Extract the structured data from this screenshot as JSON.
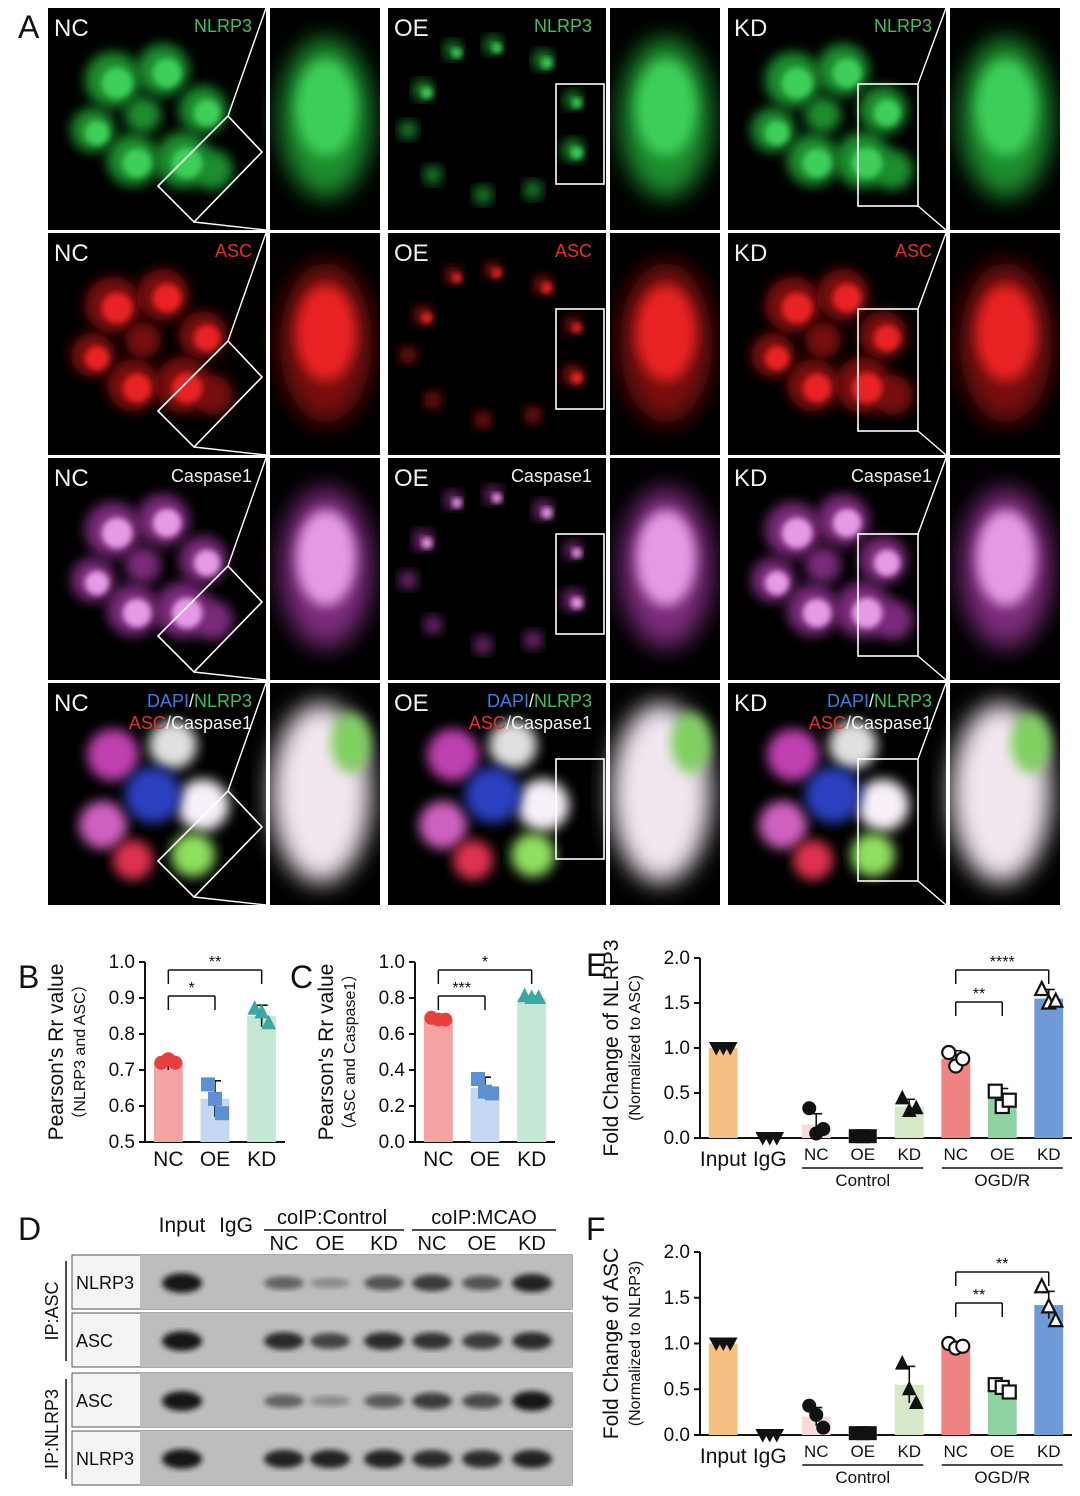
{
  "panel_labels": {
    "a": "A",
    "b": "B",
    "c": "C",
    "d": "D",
    "e": "E",
    "f": "F"
  },
  "micrograph": {
    "groups": [
      "NC",
      "OE",
      "KD"
    ],
    "rows": [
      {
        "channel": "NLRP3",
        "parts": [
          {
            "text": "NLRP3",
            "color": "#3fbf5f"
          }
        ]
      },
      {
        "channel": "ASC",
        "parts": [
          {
            "text": "ASC",
            "color": "#e23030"
          }
        ]
      },
      {
        "channel": "Caspase1",
        "parts": [
          {
            "text": "Caspase1",
            "color": "#f2eef2"
          }
        ]
      },
      {
        "channel": "merge",
        "parts": [
          {
            "text": "DAPI",
            "color": "#3a7fe0"
          },
          {
            "text": "/",
            "color": "#f2f2f2"
          },
          {
            "text": "NLRP3",
            "color": "#3fbf5f"
          }
        ],
        "parts2": [
          {
            "text": "ASC",
            "color": "#e23030"
          },
          {
            "text": "/Caspase1",
            "color": "#f2f2f2"
          }
        ]
      }
    ]
  },
  "western": {
    "header": {
      "input": "Input",
      "igg": "IgG",
      "coip_control": "coIP:Control",
      "coip_mcao": "coIP:MCAO",
      "lanes": [
        "NC",
        "OE",
        "KD",
        "NC",
        "OE",
        "KD"
      ]
    },
    "ip_groups": [
      {
        "label": "IP:ASC",
        "blots": [
          {
            "name": "NLRP3",
            "intensity": [
              0.95,
              0.0,
              0.45,
              0.2,
              0.55,
              0.7,
              0.55,
              0.85
            ]
          },
          {
            "name": "ASC",
            "intensity": [
              0.95,
              0.0,
              0.8,
              0.65,
              0.8,
              0.75,
              0.7,
              0.8
            ]
          }
        ]
      },
      {
        "label": "IP:NLRP3",
        "blots": [
          {
            "name": "ASC",
            "intensity": [
              0.95,
              0.0,
              0.45,
              0.2,
              0.5,
              0.7,
              0.6,
              0.95
            ]
          },
          {
            "name": "NLRP3",
            "intensity": [
              0.95,
              0.0,
              0.85,
              0.85,
              0.85,
              0.8,
              0.8,
              0.85
            ]
          }
        ]
      }
    ]
  },
  "chart_data": [
    {
      "id": "B",
      "type": "bar",
      "categories": [
        "NC",
        "OE",
        "KD"
      ],
      "values": [
        0.72,
        0.62,
        0.85
      ],
      "errors": [
        0.02,
        0.05,
        0.03
      ],
      "points": [
        [
          0.72,
          0.73,
          0.72
        ],
        [
          0.66,
          0.62,
          0.58
        ],
        [
          0.87,
          0.86,
          0.83
        ]
      ],
      "colors": [
        "#f4a3a3",
        "#c5d8f0",
        "#c6e6d6"
      ],
      "point_colors": [
        "#e8403f",
        "#5d8fd3",
        "#3aa9a1"
      ],
      "markers": [
        "circle",
        "square",
        "triangle"
      ],
      "ylabel": "Pearson's Rr value",
      "ylabel2": "（NLRP3 and ASC）",
      "ylim": [
        0.5,
        1.0
      ],
      "yticks": [
        "0.5",
        "0.6",
        "0.7",
        "0.8",
        "0.9",
        "1.0"
      ],
      "significance": [
        {
          "from": 0,
          "to": 1,
          "label": "*"
        },
        {
          "from": 0,
          "to": 2,
          "label": "**"
        }
      ]
    },
    {
      "id": "C",
      "type": "bar",
      "categories": [
        "NC",
        "OE",
        "KD"
      ],
      "values": [
        0.68,
        0.3,
        0.8
      ],
      "errors": [
        0.02,
        0.06,
        0.01
      ],
      "points": [
        [
          0.69,
          0.68,
          0.68
        ],
        [
          0.35,
          0.28,
          0.27
        ],
        [
          0.81,
          0.8,
          0.8
        ]
      ],
      "colors": [
        "#f4a3a3",
        "#c5d8f0",
        "#c6e6d6"
      ],
      "point_colors": [
        "#e8403f",
        "#5d8fd3",
        "#3aa9a1"
      ],
      "markers": [
        "circle",
        "square",
        "triangle"
      ],
      "ylabel": "Pearson's Rr value",
      "ylabel2": "（ASC and Caspase1）",
      "ylim": [
        0.0,
        1.0
      ],
      "yticks": [
        "0.0",
        "0.2",
        "0.4",
        "0.6",
        "0.8",
        "1.0"
      ],
      "significance": [
        {
          "from": 0,
          "to": 1,
          "label": "***"
        },
        {
          "from": 0,
          "to": 2,
          "label": "*"
        }
      ]
    },
    {
      "id": "E",
      "type": "bar",
      "categories": [
        "Input",
        "IgG",
        "NC",
        "OE",
        "KD",
        "NC",
        "OE",
        "KD"
      ],
      "groups": [
        {
          "label": "Control",
          "from": 2,
          "to": 4
        },
        {
          "label": "OGD/R",
          "from": 5,
          "to": 7
        }
      ],
      "values": [
        1.0,
        0.0,
        0.15,
        0.02,
        0.35,
        0.88,
        0.45,
        1.55
      ],
      "errors": [
        0.0,
        0.0,
        0.12,
        0.01,
        0.08,
        0.09,
        0.1,
        0.1
      ],
      "points": [
        [
          1.0,
          1.0,
          1.0
        ],
        [
          0.0,
          0.0,
          0.0
        ],
        [
          0.33,
          0.05,
          0.1
        ],
        [
          0.02,
          0.02,
          0.02
        ],
        [
          0.44,
          0.3,
          0.33
        ],
        [
          0.95,
          0.8,
          0.88
        ],
        [
          0.52,
          0.35,
          0.42
        ],
        [
          1.65,
          1.5,
          1.52
        ]
      ],
      "colors": [
        "#f5c182",
        "#ffffff",
        "#f7dada",
        "#f7dada",
        "#d6e8c8",
        "#f08282",
        "#8fd3a2",
        "#6f9ad8"
      ],
      "point_colors": [
        "#111111",
        "#111111",
        "#111111",
        "#111111",
        "#111111",
        "#111111",
        "#111111",
        "#111111"
      ],
      "markers": [
        "triangle-down",
        "triangle-down",
        "circle",
        "square",
        "triangle",
        "circle-open",
        "square-open",
        "triangle-open"
      ],
      "ylabel": "Fold Change of NLRP3",
      "ylabel2": "(Normalized to ASC)",
      "ylim": [
        0.0,
        2.0
      ],
      "yticks": [
        "0.0",
        "0.5",
        "1.0",
        "1.5",
        "2.0"
      ],
      "significance": [
        {
          "from": 5,
          "to": 6,
          "label": "**"
        },
        {
          "from": 5,
          "to": 7,
          "label": "****"
        }
      ]
    },
    {
      "id": "F",
      "type": "bar",
      "categories": [
        "Input",
        "IgG",
        "NC",
        "OE",
        "KD",
        "NC",
        "OE",
        "KD"
      ],
      "groups": [
        {
          "label": "Control",
          "from": 2,
          "to": 4
        },
        {
          "label": "OGD/R",
          "from": 5,
          "to": 7
        }
      ],
      "values": [
        1.0,
        0.0,
        0.2,
        0.02,
        0.55,
        0.97,
        0.5,
        1.42
      ],
      "errors": [
        0.0,
        0.0,
        0.1,
        0.01,
        0.2,
        0.04,
        0.05,
        0.15
      ],
      "points": [
        [
          1.0,
          1.0,
          1.0
        ],
        [
          0.0,
          0.0,
          0.0
        ],
        [
          0.32,
          0.22,
          0.08
        ],
        [
          0.02,
          0.02,
          0.02
        ],
        [
          0.78,
          0.5,
          0.35
        ],
        [
          1.0,
          0.95,
          0.97
        ],
        [
          0.55,
          0.52,
          0.47
        ],
        [
          1.62,
          1.4,
          1.25
        ]
      ],
      "colors": [
        "#f5c182",
        "#ffffff",
        "#f7dada",
        "#f7dada",
        "#d6e8c8",
        "#f08282",
        "#8fd3a2",
        "#6f9ad8"
      ],
      "point_colors": [
        "#111111",
        "#111111",
        "#111111",
        "#111111",
        "#111111",
        "#111111",
        "#111111",
        "#111111"
      ],
      "markers": [
        "triangle-down",
        "triangle-down",
        "circle",
        "square",
        "triangle",
        "circle-open",
        "square-open",
        "triangle-open"
      ],
      "ylabel": "Fold Change of ASC",
      "ylabel2": "(Normalized to NLRP3)",
      "ylim": [
        0.0,
        2.0
      ],
      "yticks": [
        "0.0",
        "0.5",
        "1.0",
        "1.5",
        "2.0"
      ],
      "significance": [
        {
          "from": 5,
          "to": 6,
          "label": "**"
        },
        {
          "from": 5,
          "to": 7,
          "label": "**"
        }
      ]
    }
  ]
}
